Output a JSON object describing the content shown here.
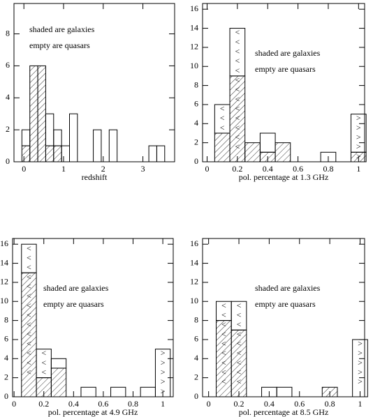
{
  "chart_data": [
    {
      "type": "histogram",
      "xlabel": "redshift",
      "annotations": [
        "shaded are galaxies",
        "empty are quasars"
      ],
      "bins": [
        -0.05,
        0.15,
        0.35,
        0.55,
        0.75,
        0.95,
        1.15,
        1.35,
        1.55,
        1.75,
        1.95,
        2.15,
        2.35,
        2.55,
        2.75,
        2.95,
        3.15,
        3.35,
        3.55
      ],
      "series": [
        {
          "fill": "hatch",
          "values": [
            1,
            6,
            6,
            1,
            1,
            0,
            0,
            0,
            0,
            0,
            0,
            0,
            0,
            0,
            0,
            0,
            0,
            0
          ]
        },
        {
          "fill": "none",
          "values": [
            1,
            0,
            0,
            2,
            1,
            1,
            3,
            0,
            0,
            2,
            0,
            2,
            0,
            0,
            0,
            0,
            1,
            1
          ]
        }
      ],
      "limits": [],
      "xlim": [
        -0.25,
        3.8
      ],
      "xticks": [
        0,
        1,
        2,
        3
      ],
      "ylim": [
        0,
        9.9
      ],
      "yticks": [
        0,
        2,
        4,
        6,
        8
      ]
    },
    {
      "type": "histogram",
      "xlabel": "pol. percentage at 1.3 GHz",
      "annotations": [
        "shaded are galaxies",
        "empty are quasars"
      ],
      "bins": [
        0.05,
        0.15,
        0.25,
        0.35,
        0.45,
        0.55,
        0.65,
        0.75,
        0.85,
        0.95,
        1.05
      ],
      "series": [
        {
          "fill": "hatch",
          "values": [
            3,
            9,
            2,
            1,
            2,
            0,
            0,
            0,
            0,
            1
          ]
        },
        {
          "fill": "none",
          "values": [
            3,
            5,
            0,
            2,
            0,
            0,
            0,
            1,
            0,
            4
          ]
        }
      ],
      "limits": [
        {
          "symbol": "<",
          "counts": [
            3,
            13,
            0,
            0,
            0,
            0,
            0,
            0,
            0,
            0
          ]
        },
        {
          "symbol": ">",
          "counts": [
            0,
            0,
            0,
            0,
            0,
            0,
            0,
            0,
            0,
            5
          ]
        }
      ],
      "xlim": [
        -0.03,
        1.04
      ],
      "xticks": [
        0,
        0.2,
        0.4,
        0.6,
        0.8,
        1
      ],
      "ylim": [
        0,
        16.6
      ],
      "yticks": [
        0,
        2,
        4,
        6,
        8,
        10,
        12,
        14,
        16
      ]
    },
    {
      "type": "histogram",
      "xlabel": "pol. percentage at 4.9 GHz",
      "annotations": [
        "shaded are galaxies",
        "empty are quasars"
      ],
      "bins": [
        0.05,
        0.15,
        0.25,
        0.35,
        0.45,
        0.55,
        0.65,
        0.75,
        0.85,
        0.95,
        1.05
      ],
      "series": [
        {
          "fill": "hatch",
          "values": [
            13,
            2,
            3,
            0,
            0,
            0,
            0,
            0,
            0,
            0
          ]
        },
        {
          "fill": "none",
          "values": [
            3,
            3,
            1,
            0,
            1,
            0,
            1,
            0,
            1,
            5
          ]
        }
      ],
      "limits": [
        {
          "symbol": "<",
          "counts": [
            14,
            3,
            0,
            0,
            0,
            0,
            0,
            0,
            0,
            0
          ]
        },
        {
          "symbol": ">",
          "counts": [
            0,
            0,
            0,
            0,
            0,
            0,
            0,
            0,
            0,
            5
          ]
        }
      ],
      "xlim": [
        -0.01,
        1.07
      ],
      "xticks": [
        0,
        0.2,
        0.4,
        0.6,
        0.8,
        1
      ],
      "ylim": [
        0,
        16.6
      ],
      "yticks": [
        0,
        2,
        4,
        6,
        8,
        10,
        12,
        14,
        16
      ]
    },
    {
      "type": "histogram",
      "xlabel": "pol. percentage at 8.5 GHz",
      "annotations": [
        "shaded are galaxies",
        "empty are quasars"
      ],
      "bins": [
        0.05,
        0.15,
        0.25,
        0.35,
        0.45,
        0.55,
        0.65,
        0.75,
        0.85,
        0.95,
        1.05
      ],
      "series": [
        {
          "fill": "hatch",
          "values": [
            8,
            7,
            0,
            0,
            0,
            0,
            0,
            1,
            0,
            0
          ]
        },
        {
          "fill": "none",
          "values": [
            2,
            3,
            0,
            1,
            1,
            0,
            0,
            0,
            0,
            6
          ]
        }
      ],
      "limits": [
        {
          "symbol": "<",
          "counts": [
            9,
            9,
            0,
            0,
            0,
            0,
            0,
            0,
            0,
            0
          ]
        },
        {
          "symbol": ">",
          "counts": [
            0,
            0,
            0,
            0,
            0,
            0,
            0,
            0,
            0,
            5
          ]
        }
      ],
      "xlim": [
        -0.04,
        1.03
      ],
      "xticks": [
        0,
        0.2,
        0.4,
        0.6,
        0.8,
        1
      ],
      "ylim": [
        0,
        16.6
      ],
      "yticks": [
        0,
        2,
        4,
        6,
        8,
        10,
        12,
        14,
        16
      ]
    }
  ]
}
